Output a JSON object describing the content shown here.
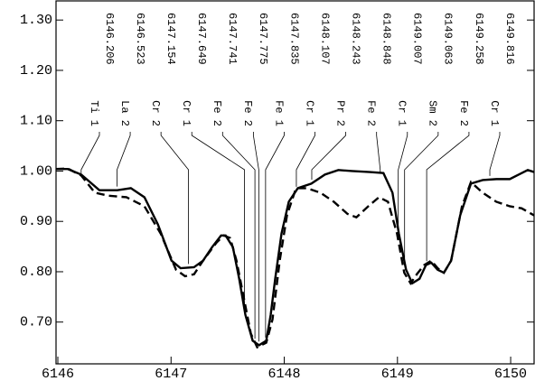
{
  "chart_data": {
    "type": "line",
    "xlim": [
      6145.984,
      6150.207
    ],
    "ylim": [
      0.617,
      1.338
    ],
    "xticks": [
      6146,
      6147,
      6148,
      6149,
      6150
    ],
    "yticks": [
      {
        "value": 0.7,
        "label": "0.70"
      },
      {
        "value": 0.8,
        "label": "0.80"
      },
      {
        "value": 0.9,
        "label": "0.90"
      },
      {
        "value": 1.0,
        "label": "1.00"
      },
      {
        "value": 1.1,
        "label": "1.10"
      },
      {
        "value": 1.2,
        "label": "1.20"
      },
      {
        "value": 1.3,
        "label": "1.30"
      }
    ],
    "series": [
      {
        "color": "#000000",
        "style": "solid",
        "x": [
          6145.984,
          6146.088,
          6146.207,
          6146.367,
          6146.526,
          6146.645,
          6146.765,
          6146.884,
          6147.004,
          6147.084,
          6147.203,
          6147.283,
          6147.363,
          6147.442,
          6147.482,
          6147.546,
          6147.602,
          6147.657,
          6147.721,
          6147.777,
          6147.841,
          6147.88,
          6147.92,
          6147.976,
          6148.04,
          6148.12,
          6148.239,
          6148.359,
          6148.478,
          6148.598,
          6148.757,
          6148.876,
          6148.956,
          6149.012,
          6149.076,
          6149.131,
          6149.195,
          6149.251,
          6149.299,
          6149.355,
          6149.41,
          6149.474,
          6149.554,
          6149.649,
          6149.753,
          6149.873,
          6149.992,
          6150.072,
          6150.151,
          6150.207
        ],
        "values": [
          1.004,
          1.004,
          0.993,
          0.962,
          0.962,
          0.966,
          0.948,
          0.894,
          0.822,
          0.807,
          0.809,
          0.822,
          0.849,
          0.872,
          0.872,
          0.849,
          0.786,
          0.714,
          0.663,
          0.654,
          0.663,
          0.714,
          0.786,
          0.876,
          0.939,
          0.966,
          0.975,
          0.993,
          1.002,
          1.0,
          0.998,
          0.996,
          0.957,
          0.876,
          0.804,
          0.777,
          0.786,
          0.813,
          0.818,
          0.804,
          0.798,
          0.822,
          0.912,
          0.975,
          0.982,
          0.984,
          0.984,
          0.993,
          1.002,
          0.998
        ]
      },
      {
        "color": "#000000",
        "style": "dashed",
        "x": [
          6145.984,
          6146.088,
          6146.207,
          6146.327,
          6146.446,
          6146.606,
          6146.765,
          6146.908,
          6147.044,
          6147.124,
          6147.203,
          6147.283,
          6147.402,
          6147.466,
          6147.522,
          6147.578,
          6147.641,
          6147.705,
          6147.761,
          6147.841,
          6147.896,
          6147.96,
          6148.024,
          6148.104,
          6148.199,
          6148.319,
          6148.438,
          6148.558,
          6148.637,
          6148.757,
          6148.837,
          6148.916,
          6148.996,
          6149.06,
          6149.116,
          6149.171,
          6149.235,
          6149.299,
          6149.355,
          6149.41,
          6149.474,
          6149.57,
          6149.649,
          6149.753,
          6149.873,
          6149.992,
          6150.096,
          6150.207
        ],
        "values": [
          1.004,
          1.005,
          0.991,
          0.957,
          0.951,
          0.948,
          0.93,
          0.876,
          0.804,
          0.791,
          0.795,
          0.822,
          0.858,
          0.872,
          0.867,
          0.822,
          0.75,
          0.677,
          0.65,
          0.659,
          0.705,
          0.822,
          0.912,
          0.966,
          0.966,
          0.957,
          0.939,
          0.915,
          0.908,
          0.933,
          0.948,
          0.939,
          0.876,
          0.798,
          0.777,
          0.795,
          0.813,
          0.822,
          0.807,
          0.798,
          0.822,
          0.93,
          0.978,
          0.957,
          0.939,
          0.93,
          0.926,
          0.912
        ]
      }
    ],
    "annotations": [
      {
        "label": "Ti 1",
        "wavelength": 6146.206
      },
      {
        "label": "La 2",
        "wavelength": 6146.523
      },
      {
        "label": "Cr 2",
        "wavelength": 6147.154
      },
      {
        "label": "Cr 1",
        "wavelength": 6147.649
      },
      {
        "label": "Fe 2",
        "wavelength": 6147.741
      },
      {
        "label": "Fe 2",
        "wavelength": 6147.775
      },
      {
        "label": "Fe 1",
        "wavelength": 6147.835
      },
      {
        "label": "Cr 1",
        "wavelength": 6148.107
      },
      {
        "label": "Pr 2",
        "wavelength": 6148.243
      },
      {
        "label": "Fe 2",
        "wavelength": 6148.848
      },
      {
        "label": "Cr 1",
        "wavelength": 6149.007
      },
      {
        "label": "Sm 2",
        "wavelength": 6149.063
      },
      {
        "label": "Fe 2",
        "wavelength": 6149.258
      },
      {
        "label": "Cr 1",
        "wavelength": 6149.816
      }
    ]
  }
}
